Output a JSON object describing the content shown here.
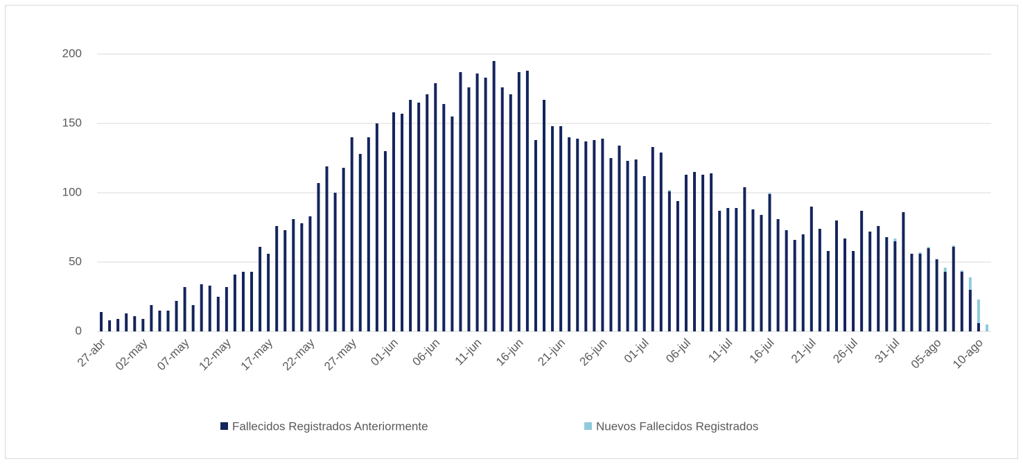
{
  "chart_data": {
    "type": "stacked_bar",
    "categories": [
      "27-abr",
      null,
      null,
      null,
      null,
      "02-may",
      null,
      null,
      null,
      null,
      "07-may",
      null,
      null,
      null,
      null,
      "12-may",
      null,
      null,
      null,
      null,
      "17-may",
      null,
      null,
      null,
      null,
      "22-may",
      null,
      null,
      null,
      null,
      "27-may",
      null,
      null,
      null,
      null,
      "01-jun",
      null,
      null,
      null,
      null,
      "06-jun",
      null,
      null,
      null,
      null,
      "11-jun",
      null,
      null,
      null,
      null,
      "16-jun",
      null,
      null,
      null,
      null,
      "21-jun",
      null,
      null,
      null,
      null,
      "26-jun",
      null,
      null,
      null,
      null,
      "01-jul",
      null,
      null,
      null,
      null,
      "06-jul",
      null,
      null,
      null,
      null,
      "11-jul",
      null,
      null,
      null,
      null,
      "16-jul",
      null,
      null,
      null,
      null,
      "21-jul",
      null,
      null,
      null,
      null,
      "26-jul",
      null,
      null,
      null,
      null,
      "31-jul",
      null,
      null,
      null,
      null,
      "05-ago",
      null,
      null,
      null,
      null,
      "10-ago",
      null
    ],
    "series": [
      {
        "name": "Fallecidos Registrados Anteriormente",
        "color": "#14245c",
        "values": [
          14,
          8,
          9,
          13,
          11,
          9,
          19,
          15,
          15,
          22,
          32,
          19,
          34,
          33,
          25,
          32,
          41,
          43,
          43,
          61,
          56,
          76,
          73,
          81,
          78,
          83,
          107,
          119,
          100,
          118,
          140,
          128,
          140,
          150,
          130,
          158,
          157,
          167,
          165,
          171,
          179,
          164,
          155,
          187,
          176,
          186,
          183,
          195,
          176,
          171,
          187,
          188,
          138,
          167,
          148,
          148,
          140,
          139,
          137,
          138,
          139,
          125,
          134,
          123,
          124,
          112,
          133,
          129,
          101,
          94,
          113,
          115,
          113,
          114,
          87,
          89,
          89,
          104,
          88,
          84,
          99,
          81,
          73,
          66,
          70,
          90,
          74,
          58,
          80,
          67,
          58,
          87,
          72,
          76,
          68,
          65,
          86,
          56,
          56,
          60,
          52,
          43,
          61,
          43,
          30,
          6,
          0
        ]
      },
      {
        "name": "Nuevos Fallecidos Registrados",
        "color": "#8ecbdc",
        "values": [
          0,
          0,
          0,
          0,
          0,
          0,
          0,
          0,
          0,
          0,
          0,
          0,
          0,
          0,
          0,
          0,
          0,
          0,
          0,
          0,
          0,
          0,
          0,
          0,
          0,
          0,
          0,
          0,
          0,
          0,
          0,
          0,
          0,
          0,
          0,
          0,
          0,
          0,
          0,
          0,
          0,
          0,
          0,
          0,
          0,
          0,
          0,
          0,
          0,
          0,
          0,
          0,
          0,
          0,
          0,
          0,
          0,
          0,
          0,
          0,
          0,
          0,
          0,
          0,
          0,
          0,
          0,
          0,
          1,
          0,
          0,
          0,
          0,
          0,
          0,
          0,
          0,
          0,
          0,
          0,
          1,
          0,
          0,
          0,
          0,
          0,
          0,
          0,
          0,
          0,
          0,
          0,
          0,
          0,
          0,
          2,
          0,
          0,
          1,
          1,
          0,
          3,
          1,
          1,
          9,
          17,
          5
        ]
      }
    ],
    "ylim": [
      0,
      200
    ],
    "yticks": [
      0,
      50,
      100,
      150,
      200
    ],
    "grid": true,
    "legend": "bottom"
  }
}
